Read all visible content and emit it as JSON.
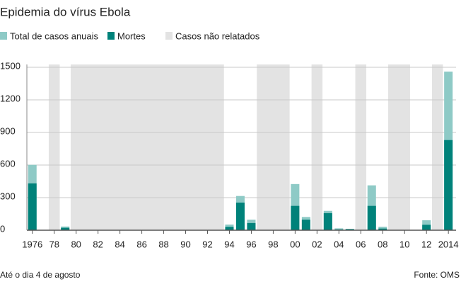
{
  "chart_data": {
    "type": "bar",
    "title": "Epidemia do vírus Ebola",
    "x": [
      1976,
      1979,
      1994,
      1995,
      1996,
      2000,
      2001,
      2003,
      2004,
      2005,
      2007,
      2008,
      2012,
      2014
    ],
    "series": [
      {
        "name": "Total de casos anuais",
        "color": "#8ecac6",
        "values": [
          602,
          34,
          52,
          315,
          97,
          425,
          122,
          178,
          17,
          12,
          413,
          32,
          92,
          1460
        ]
      },
      {
        "name": "Mortes",
        "color": "#00827a",
        "values": [
          431,
          22,
          31,
          254,
          66,
          224,
          97,
          157,
          7,
          10,
          224,
          15,
          50,
          830
        ]
      }
    ],
    "unreported": {
      "name": "Casos não relatados",
      "color": "#e3e3e3",
      "ranges": [
        [
          1978,
          1978
        ],
        [
          1980,
          1993
        ],
        [
          1997,
          1999
        ],
        [
          2002,
          2002
        ],
        [
          2006,
          2006
        ],
        [
          2009,
          2010
        ],
        [
          2013,
          2013
        ]
      ]
    },
    "xlim": [
      1975.5,
      2014.7
    ],
    "xticks": [
      1976,
      {
        "value": 1978,
        "label": "78"
      },
      {
        "value": 1980,
        "label": "80"
      },
      {
        "value": 1982,
        "label": "82"
      },
      {
        "value": 1984,
        "label": "84"
      },
      {
        "value": 1986,
        "label": "86"
      },
      {
        "value": 1988,
        "label": "88"
      },
      {
        "value": 1990,
        "label": "90"
      },
      {
        "value": 1992,
        "label": "92"
      },
      {
        "value": 1994,
        "label": "94"
      },
      {
        "value": 1996,
        "label": "96"
      },
      {
        "value": 1998,
        "label": "98"
      },
      {
        "value": 2000,
        "label": "00"
      },
      {
        "value": 2002,
        "label": "02"
      },
      {
        "value": 2004,
        "label": "04"
      },
      {
        "value": 2006,
        "label": "06"
      },
      {
        "value": 2008,
        "label": "08"
      },
      {
        "value": 2010,
        "label": "10"
      },
      {
        "value": 2012,
        "label": "12"
      },
      2014
    ],
    "ylim": [
      0,
      1500
    ],
    "yticks": [
      0,
      300,
      600,
      900,
      1200,
      1500
    ],
    "grid": true,
    "note": "Até o dia 4 de agosto",
    "source": "Fonte: OMS"
  }
}
